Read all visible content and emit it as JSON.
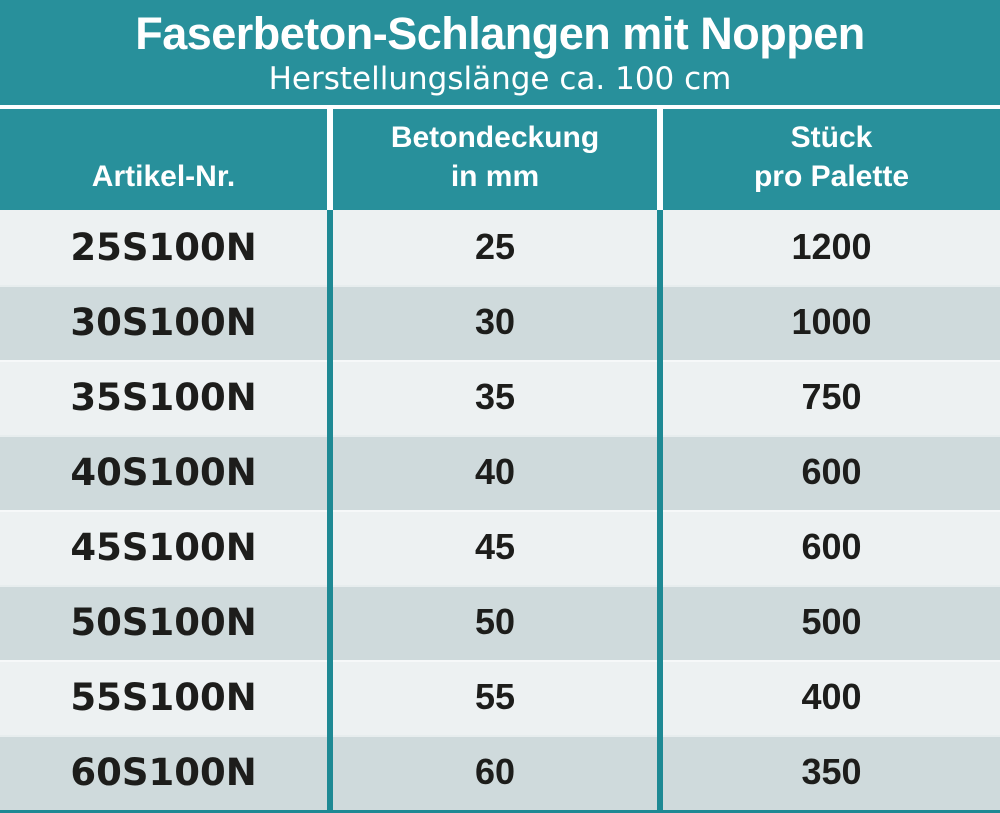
{
  "title": {
    "main": "Faserbeton-Schlangen mit Noppen",
    "sub": "Herstellungslänge ca. 100 cm"
  },
  "columns": [
    {
      "line1": "Artikel-Nr.",
      "line2": ""
    },
    {
      "line1": "Betondeckung",
      "line2": "in mm"
    },
    {
      "line1": "Stück",
      "line2": "pro Palette"
    }
  ],
  "rows": [
    {
      "artikel": "25S100N",
      "betondeckung": "25",
      "stueck": "1200"
    },
    {
      "artikel": "30S100N",
      "betondeckung": "30",
      "stueck": "1000"
    },
    {
      "artikel": "35S100N",
      "betondeckung": "35",
      "stueck": "750"
    },
    {
      "artikel": "40S100N",
      "betondeckung": "40",
      "stueck": "600"
    },
    {
      "artikel": "45S100N",
      "betondeckung": "45",
      "stueck": "600"
    },
    {
      "artikel": "50S100N",
      "betondeckung": "50",
      "stueck": "500"
    },
    {
      "artikel": "55S100N",
      "betondeckung": "55",
      "stueck": "400"
    },
    {
      "artikel": "60S100N",
      "betondeckung": "60",
      "stueck": "350"
    }
  ],
  "colors": {
    "teal": "#28909B",
    "divider_teal": "#1E8994",
    "row_light": "#EDF1F2",
    "row_dark": "#CFDADC",
    "text_dark": "#1D1D1B",
    "separator_white": "#FFFFFF"
  }
}
